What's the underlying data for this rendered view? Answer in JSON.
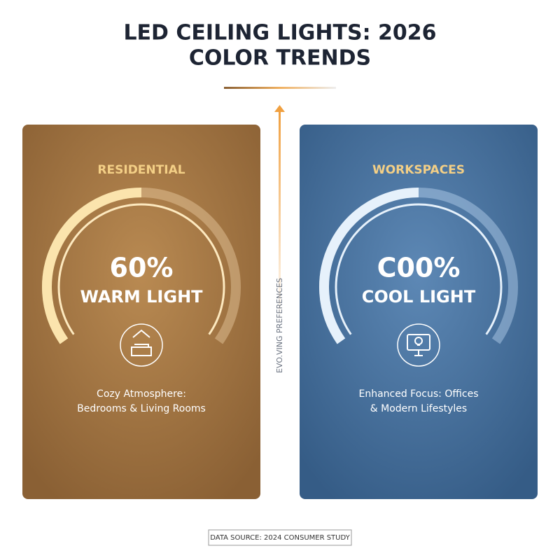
{
  "header": {
    "title_lines": [
      "LED CEILING LIGHTS: 2026",
      "COLOR TRENDS"
    ]
  },
  "divider_label": "EVO.VING PREFERENCES",
  "cards": [
    {
      "label": "RESIDENTIAL",
      "value_label": "60%",
      "caption": "WARM LIGHT",
      "description_lines": [
        "Cozy Atmosphere:",
        "Bedrooms & Living Rooms"
      ]
    },
    {
      "label": "WORKSPACES",
      "value_label": "C00%",
      "caption": "COOL LIGHT",
      "description_lines": [
        "Enhanced Focus: Offices",
        "& Modern Lifestyles"
      ]
    }
  ],
  "footer": {
    "source": "DATA SOURCE: 2024 CONSUMER STUDY"
  }
}
